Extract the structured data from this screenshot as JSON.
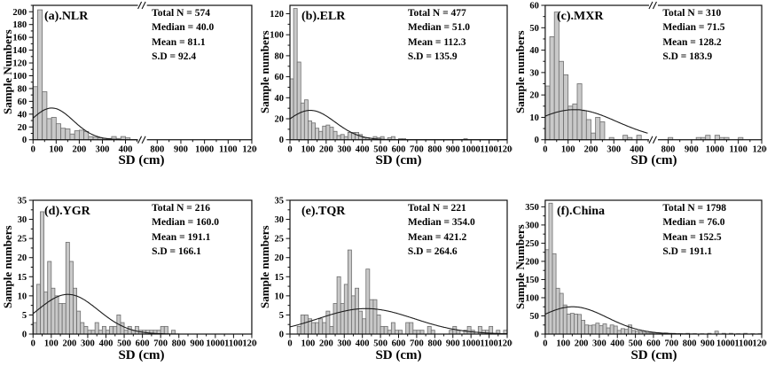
{
  "figure": {
    "xlabel": "SD (cm)",
    "colors": {
      "background": "#ffffff",
      "bar_fill": "#c9c9c9",
      "bar_stroke": "#6e6e6e",
      "curve": "#1c1c1c",
      "axis": "#111111",
      "text": "#000000"
    }
  },
  "chart_data": [
    {
      "type": "bar",
      "panel_label": "(a).NLR",
      "ylabel": "Sample Numbers",
      "xlabel": "SD (cm)",
      "stats_lines": [
        "Total N = 574",
        "Median = 40.0",
        "Mean = 81.1",
        "S.D = 92.4"
      ],
      "stats": {
        "total_n": 574,
        "median": 40.0,
        "mean": 81.1,
        "sd": 92.4
      },
      "ylim": [
        0,
        210
      ],
      "yticks": {
        "step": 20,
        "max": 200
      },
      "xlim": [
        0,
        1200
      ],
      "xticks": {
        "step": 100
      },
      "axis_break": {
        "from": 450,
        "to": 760
      },
      "bin_width": 20,
      "bars": [
        [
          0,
          83
        ],
        [
          20,
          203
        ],
        [
          40,
          75
        ],
        [
          60,
          33
        ],
        [
          80,
          35
        ],
        [
          100,
          25
        ],
        [
          120,
          18
        ],
        [
          140,
          17
        ],
        [
          160,
          9
        ],
        [
          180,
          14
        ],
        [
          200,
          15
        ],
        [
          220,
          13
        ],
        [
          240,
          5
        ],
        [
          260,
          4
        ],
        [
          280,
          3
        ],
        [
          300,
          2
        ],
        [
          320,
          2
        ],
        [
          340,
          5
        ],
        [
          360,
          2
        ],
        [
          380,
          5
        ],
        [
          400,
          3
        ]
      ]
    },
    {
      "type": "bar",
      "panel_label": "(b).ELR",
      "ylabel": "Sample numbers",
      "xlabel": "SD (cm)",
      "stats_lines": [
        "Total N = 477",
        "Median = 51.0",
        "Mean = 112.3",
        "S.D = 135.9"
      ],
      "stats": {
        "total_n": 477,
        "median": 51.0,
        "mean": 112.3,
        "sd": 135.9
      },
      "ylim": [
        0,
        128
      ],
      "yticks": {
        "step": 20,
        "max": 120
      },
      "xlim": [
        0,
        1200
      ],
      "xticks": {
        "step": 100
      },
      "axis_break": null,
      "bin_width": 20,
      "bars": [
        [
          0,
          58
        ],
        [
          20,
          125
        ],
        [
          40,
          74
        ],
        [
          60,
          35
        ],
        [
          80,
          38
        ],
        [
          100,
          18
        ],
        [
          120,
          16
        ],
        [
          140,
          11
        ],
        [
          160,
          8
        ],
        [
          180,
          13
        ],
        [
          200,
          14
        ],
        [
          220,
          12
        ],
        [
          240,
          8
        ],
        [
          260,
          4
        ],
        [
          280,
          5
        ],
        [
          300,
          3
        ],
        [
          320,
          7
        ],
        [
          340,
          7
        ],
        [
          360,
          7
        ],
        [
          380,
          5
        ],
        [
          400,
          2
        ],
        [
          420,
          2
        ],
        [
          460,
          3
        ],
        [
          480,
          2
        ],
        [
          500,
          3
        ],
        [
          540,
          2
        ],
        [
          560,
          3
        ],
        [
          600,
          1
        ],
        [
          620,
          1
        ],
        [
          960,
          1
        ]
      ]
    },
    {
      "type": "bar",
      "panel_label": "(c).MXR",
      "ylabel": "Sample numbers",
      "xlabel": "SD (cm)",
      "stats_lines": [
        "Total N = 310",
        "Median = 71.5",
        "Mean = 128.2",
        "S.D = 183.9"
      ],
      "stats": {
        "total_n": 310,
        "median": 71.5,
        "mean": 128.2,
        "sd": 183.9
      },
      "ylim": [
        0,
        60
      ],
      "yticks": {
        "step": 10,
        "max": 60
      },
      "xlim": [
        0,
        1200
      ],
      "xticks": {
        "step": 100
      },
      "axis_break": {
        "from": 450,
        "to": 760
      },
      "bin_width": 20,
      "bars": [
        [
          0,
          24
        ],
        [
          20,
          46
        ],
        [
          40,
          57
        ],
        [
          60,
          35
        ],
        [
          80,
          29
        ],
        [
          100,
          15
        ],
        [
          120,
          16
        ],
        [
          140,
          25
        ],
        [
          160,
          13
        ],
        [
          180,
          9
        ],
        [
          200,
          3
        ],
        [
          220,
          10
        ],
        [
          240,
          8
        ],
        [
          280,
          1
        ],
        [
          340,
          2
        ],
        [
          360,
          1
        ],
        [
          400,
          2
        ],
        [
          800,
          1
        ],
        [
          920,
          1
        ],
        [
          940,
          1
        ],
        [
          960,
          2
        ],
        [
          1000,
          2
        ],
        [
          1020,
          1
        ],
        [
          1040,
          1
        ],
        [
          1100,
          1
        ]
      ]
    },
    {
      "type": "bar",
      "panel_label": "(d).YGR",
      "ylabel": "Sample numbers",
      "xlabel": "SD (cm)",
      "stats_lines": [
        "Total N = 216",
        "Median = 160.0",
        "Mean = 191.1",
        "S.D = 166.1"
      ],
      "stats": {
        "total_n": 216,
        "median": 160.0,
        "mean": 191.1,
        "sd": 166.1
      },
      "ylim": [
        0,
        35
      ],
      "yticks": {
        "step": 5,
        "max": 35
      },
      "xlim": [
        0,
        1200
      ],
      "xticks": {
        "step": 100
      },
      "axis_break": null,
      "bin_width": 20,
      "bars": [
        [
          0,
          3
        ],
        [
          20,
          13
        ],
        [
          40,
          32
        ],
        [
          60,
          11
        ],
        [
          80,
          19
        ],
        [
          100,
          12
        ],
        [
          120,
          10
        ],
        [
          140,
          8
        ],
        [
          160,
          8
        ],
        [
          180,
          24
        ],
        [
          200,
          19
        ],
        [
          220,
          12
        ],
        [
          240,
          6
        ],
        [
          260,
          3
        ],
        [
          280,
          2
        ],
        [
          300,
          1
        ],
        [
          320,
          1
        ],
        [
          340,
          3
        ],
        [
          360,
          1
        ],
        [
          380,
          2
        ],
        [
          400,
          1
        ],
        [
          420,
          2
        ],
        [
          440,
          2
        ],
        [
          460,
          5
        ],
        [
          480,
          3
        ],
        [
          500,
          1
        ],
        [
          520,
          2
        ],
        [
          540,
          1
        ],
        [
          560,
          2
        ],
        [
          580,
          1
        ],
        [
          600,
          1
        ],
        [
          620,
          1
        ],
        [
          640,
          1
        ],
        [
          660,
          1
        ],
        [
          680,
          1
        ],
        [
          700,
          2
        ],
        [
          720,
          2
        ],
        [
          760,
          1
        ]
      ]
    },
    {
      "type": "bar",
      "panel_label": "(e).TQR",
      "ylabel": "Sample numbers",
      "xlabel": "SD (cm)",
      "stats_lines": [
        "Total N = 221",
        "Median = 354.0",
        "Mean = 421.2",
        "S.D = 264.6"
      ],
      "stats": {
        "total_n": 221,
        "median": 354.0,
        "mean": 421.2,
        "sd": 264.6
      },
      "ylim": [
        0,
        35
      ],
      "yticks": {
        "step": 5,
        "max": 35
      },
      "xlim": [
        0,
        1200
      ],
      "xticks": {
        "step": 100
      },
      "axis_break": null,
      "bin_width": 20,
      "bars": [
        [
          40,
          2
        ],
        [
          60,
          5
        ],
        [
          80,
          5
        ],
        [
          100,
          4
        ],
        [
          120,
          3
        ],
        [
          140,
          3
        ],
        [
          160,
          4
        ],
        [
          180,
          3
        ],
        [
          200,
          6
        ],
        [
          220,
          2
        ],
        [
          240,
          8
        ],
        [
          260,
          15
        ],
        [
          280,
          8
        ],
        [
          300,
          13
        ],
        [
          320,
          22
        ],
        [
          340,
          10
        ],
        [
          360,
          12
        ],
        [
          380,
          6
        ],
        [
          400,
          4
        ],
        [
          420,
          17
        ],
        [
          440,
          9
        ],
        [
          460,
          9
        ],
        [
          480,
          5
        ],
        [
          500,
          2
        ],
        [
          520,
          2
        ],
        [
          540,
          1
        ],
        [
          560,
          3
        ],
        [
          580,
          1
        ],
        [
          600,
          1
        ],
        [
          640,
          3
        ],
        [
          660,
          3
        ],
        [
          680,
          1
        ],
        [
          700,
          1
        ],
        [
          720,
          1
        ],
        [
          760,
          2
        ],
        [
          780,
          1
        ],
        [
          880,
          1
        ],
        [
          900,
          2
        ],
        [
          920,
          1
        ],
        [
          960,
          1
        ],
        [
          980,
          2
        ],
        [
          1000,
          1
        ],
        [
          1040,
          2
        ],
        [
          1060,
          1
        ],
        [
          1080,
          1
        ],
        [
          1100,
          2
        ],
        [
          1140,
          1
        ],
        [
          1180,
          1
        ]
      ]
    },
    {
      "type": "bar",
      "panel_label": "(f).China",
      "ylabel": "Sample Numbers",
      "xlabel": "SD (cm)",
      "stats_lines": [
        "Total N = 1798",
        "Median = 76.0",
        "Mean = 152.5",
        "S.D = 191.1"
      ],
      "stats": {
        "total_n": 1798,
        "median": 76.0,
        "mean": 152.5,
        "sd": 191.1
      },
      "ylim": [
        0,
        368
      ],
      "yticks": {
        "step": 50,
        "max": 350
      },
      "xlim": [
        0,
        1200
      ],
      "xticks": {
        "step": 100
      },
      "axis_break": null,
      "bin_width": 20,
      "bars": [
        [
          0,
          232
        ],
        [
          20,
          360
        ],
        [
          40,
          221
        ],
        [
          60,
          126
        ],
        [
          80,
          112
        ],
        [
          100,
          80
        ],
        [
          120,
          55
        ],
        [
          140,
          57
        ],
        [
          160,
          55
        ],
        [
          180,
          54
        ],
        [
          200,
          38
        ],
        [
          220,
          25
        ],
        [
          240,
          24
        ],
        [
          260,
          25
        ],
        [
          280,
          30
        ],
        [
          300,
          23
        ],
        [
          320,
          28
        ],
        [
          340,
          17
        ],
        [
          360,
          25
        ],
        [
          380,
          22
        ],
        [
          400,
          10
        ],
        [
          420,
          15
        ],
        [
          440,
          13
        ],
        [
          460,
          25
        ],
        [
          480,
          10
        ],
        [
          500,
          8
        ],
        [
          520,
          7
        ],
        [
          540,
          5
        ],
        [
          560,
          3
        ],
        [
          580,
          3
        ],
        [
          600,
          4
        ],
        [
          620,
          3
        ],
        [
          640,
          2
        ],
        [
          660,
          3
        ],
        [
          680,
          2
        ],
        [
          700,
          2
        ],
        [
          740,
          1
        ],
        [
          780,
          2
        ],
        [
          820,
          1
        ],
        [
          860,
          1
        ],
        [
          900,
          2
        ],
        [
          940,
          8
        ],
        [
          980,
          2
        ],
        [
          1020,
          2
        ],
        [
          1060,
          1
        ],
        [
          1100,
          2
        ],
        [
          1140,
          1
        ],
        [
          1180,
          1
        ]
      ]
    }
  ]
}
